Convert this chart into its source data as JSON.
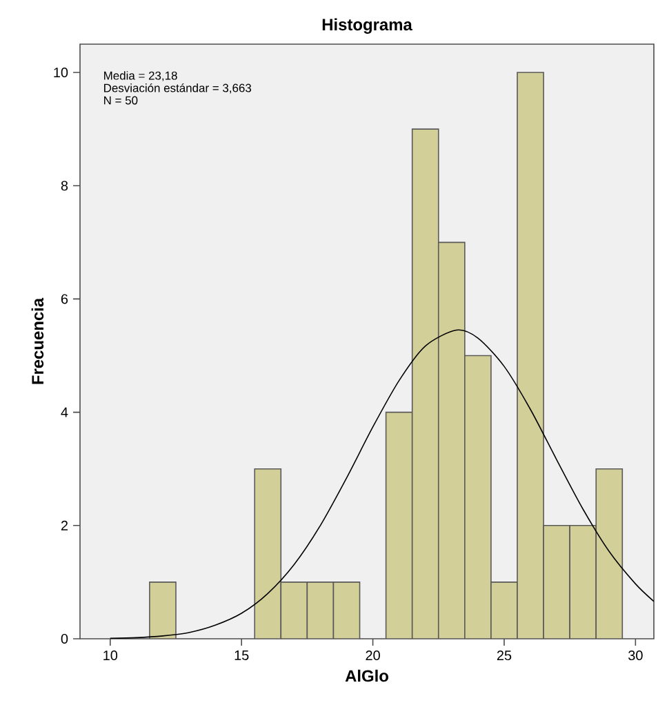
{
  "chart_data": {
    "type": "histogram",
    "title": "Histograma",
    "xlabel": "AlGlo",
    "ylabel": "Frecuencia",
    "annotations": [
      "Media = 23,18",
      "Desviación estándar = 3,663",
      "N = 50"
    ],
    "xlim": [
      8.85,
      30.7
    ],
    "ylim": [
      0,
      10.5
    ],
    "xticks": [
      10,
      15,
      20,
      25,
      30
    ],
    "yticks": [
      0,
      2,
      4,
      6,
      8,
      10
    ],
    "series": [
      {
        "color": "#d3cf98",
        "bins": [
          11.5,
          12.5,
          13.5,
          14.5,
          15.5,
          16.5,
          17.5,
          18.5,
          19.5,
          20.5,
          21.5,
          22.5,
          23.5,
          24.5,
          25.5,
          26.5,
          27.5,
          28.5,
          29.5
        ],
        "values": [
          1,
          0,
          0,
          0,
          3,
          1,
          1,
          1,
          0,
          4,
          9,
          7,
          5,
          1,
          10,
          2,
          2,
          3
        ]
      },
      {
        "type": "line",
        "color": "#000000",
        "x": [
          10,
          11,
          12,
          13,
          14,
          15,
          16,
          17,
          18,
          19,
          20,
          21,
          22,
          23.18,
          24,
          25,
          26,
          27,
          28,
          29,
          30,
          30.7
        ],
        "values": [
          0.01,
          0.02,
          0.05,
          0.11,
          0.24,
          0.45,
          0.8,
          1.31,
          2.0,
          2.84,
          3.74,
          4.56,
          5.17,
          5.45,
          5.31,
          4.81,
          4.05,
          3.16,
          2.29,
          1.54,
          0.97,
          0.66
        ]
      }
    ]
  }
}
